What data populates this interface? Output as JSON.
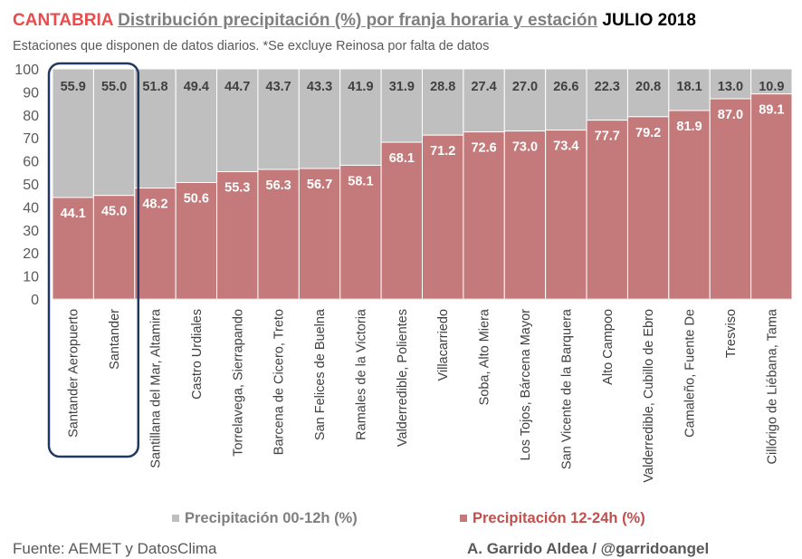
{
  "title": {
    "region": "CANTABRIA",
    "main": "Distribución precipitación (%) por franja horaria y estación",
    "month": "JULIO 2018"
  },
  "subtitle": "Estaciones que disponen de datos diarios. *Se excluye Reinosa por falta de datos",
  "colors": {
    "morning": "#bfbfbf",
    "afternoon": "#c47a7a",
    "highlight": "#1f3864",
    "morning_legend": "#7f7f7f",
    "afternoon_legend": "#c0504d"
  },
  "legend": {
    "morning": "Precipitación 00-12h (%)",
    "afternoon": "Precipitación 12-24h (%)"
  },
  "footer": {
    "source": "Fuente: AEMET y DatosClima",
    "author": "A. Garrido Aldea / @garridoangel"
  },
  "chart_data": {
    "type": "bar",
    "stacked": true,
    "title": "Distribución precipitación (%) por franja horaria y estación",
    "xlabel": "",
    "ylabel": "",
    "ylim": [
      0,
      100
    ],
    "yticks": [
      0,
      10,
      20,
      30,
      40,
      50,
      60,
      70,
      80,
      90,
      100
    ],
    "categories": [
      "Santander Aeropuerto",
      "Santander",
      "Santillana del Mar, Altamira",
      "Castro Urdiales",
      "Torrelavega, Sierrapando",
      "Barcena de Cicero, Treto",
      "San Felices de Buelna",
      "Ramales de la Victoria",
      "Valderredible, Polientes",
      "Villacarriedo",
      "Soba, Alto Miera",
      "Los Tojos, Bárcena Mayor",
      "San Vicente de la Barquera",
      "Alto Campoo",
      "Valderredible, Cubillo de Ebro",
      "Camaleño, Fuente De",
      "Tresviso",
      "Cillórigo de Liébana, Tama"
    ],
    "series": [
      {
        "name": "Precipitación 12-24h (%)",
        "values": [
          44.1,
          45.0,
          48.2,
          50.6,
          55.3,
          56.3,
          56.7,
          58.1,
          68.1,
          71.2,
          72.6,
          73.0,
          73.4,
          77.7,
          79.2,
          81.9,
          87.0,
          89.1
        ]
      },
      {
        "name": "Precipitación 00-12h (%)",
        "values": [
          55.9,
          55.0,
          51.8,
          49.4,
          44.7,
          43.7,
          43.3,
          41.9,
          31.9,
          28.8,
          27.4,
          27.0,
          26.6,
          22.3,
          20.8,
          18.1,
          13.0,
          10.9
        ]
      }
    ],
    "value_labels": {
      "bottom": [
        "44.1",
        "45.0",
        "48.2",
        "50.6",
        "55.3",
        "56.3",
        "56.7",
        "58.1",
        "68.1",
        "71.2",
        "72.6",
        "73.0",
        "73.4",
        "77.7",
        "79.2",
        "81.9",
        "87.0",
        "89.1"
      ],
      "top": [
        "55.9",
        "55.0",
        "51.8",
        "49.4",
        "44.7",
        "43.7",
        "43.3",
        "41.9",
        "31.9",
        "28.8",
        "27.4",
        "27.0",
        "26.6",
        "22.3",
        "20.8",
        "18.1",
        "13.0",
        "10.9"
      ]
    },
    "highlighted_categories": [
      "Santander Aeropuerto",
      "Santander"
    ],
    "legend_position": "bottom"
  }
}
